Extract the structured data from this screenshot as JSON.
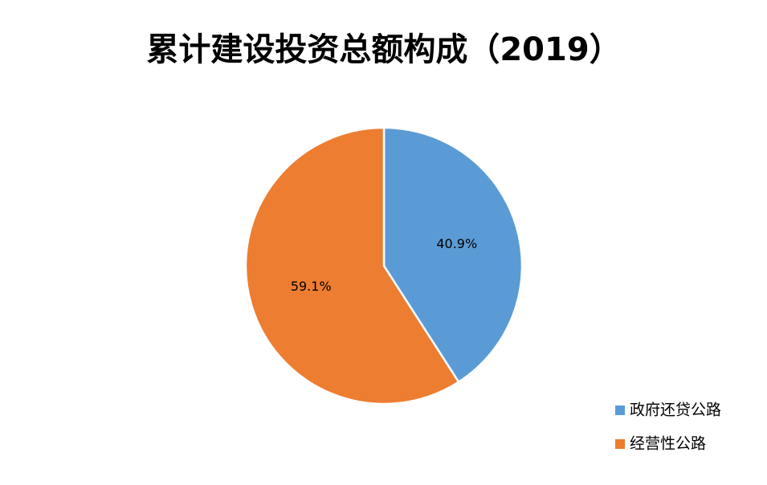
{
  "chart_data": {
    "type": "pie",
    "title": "累计建设投资总额构成（2019）",
    "categories": [
      "政府还贷公路",
      "经营性公路"
    ],
    "values": [
      40.9,
      59.1
    ],
    "value_labels": [
      "40.9%",
      "59.1%"
    ],
    "colors": [
      "#5b9bd5",
      "#ed7d31"
    ],
    "legend": "bottom-right"
  }
}
